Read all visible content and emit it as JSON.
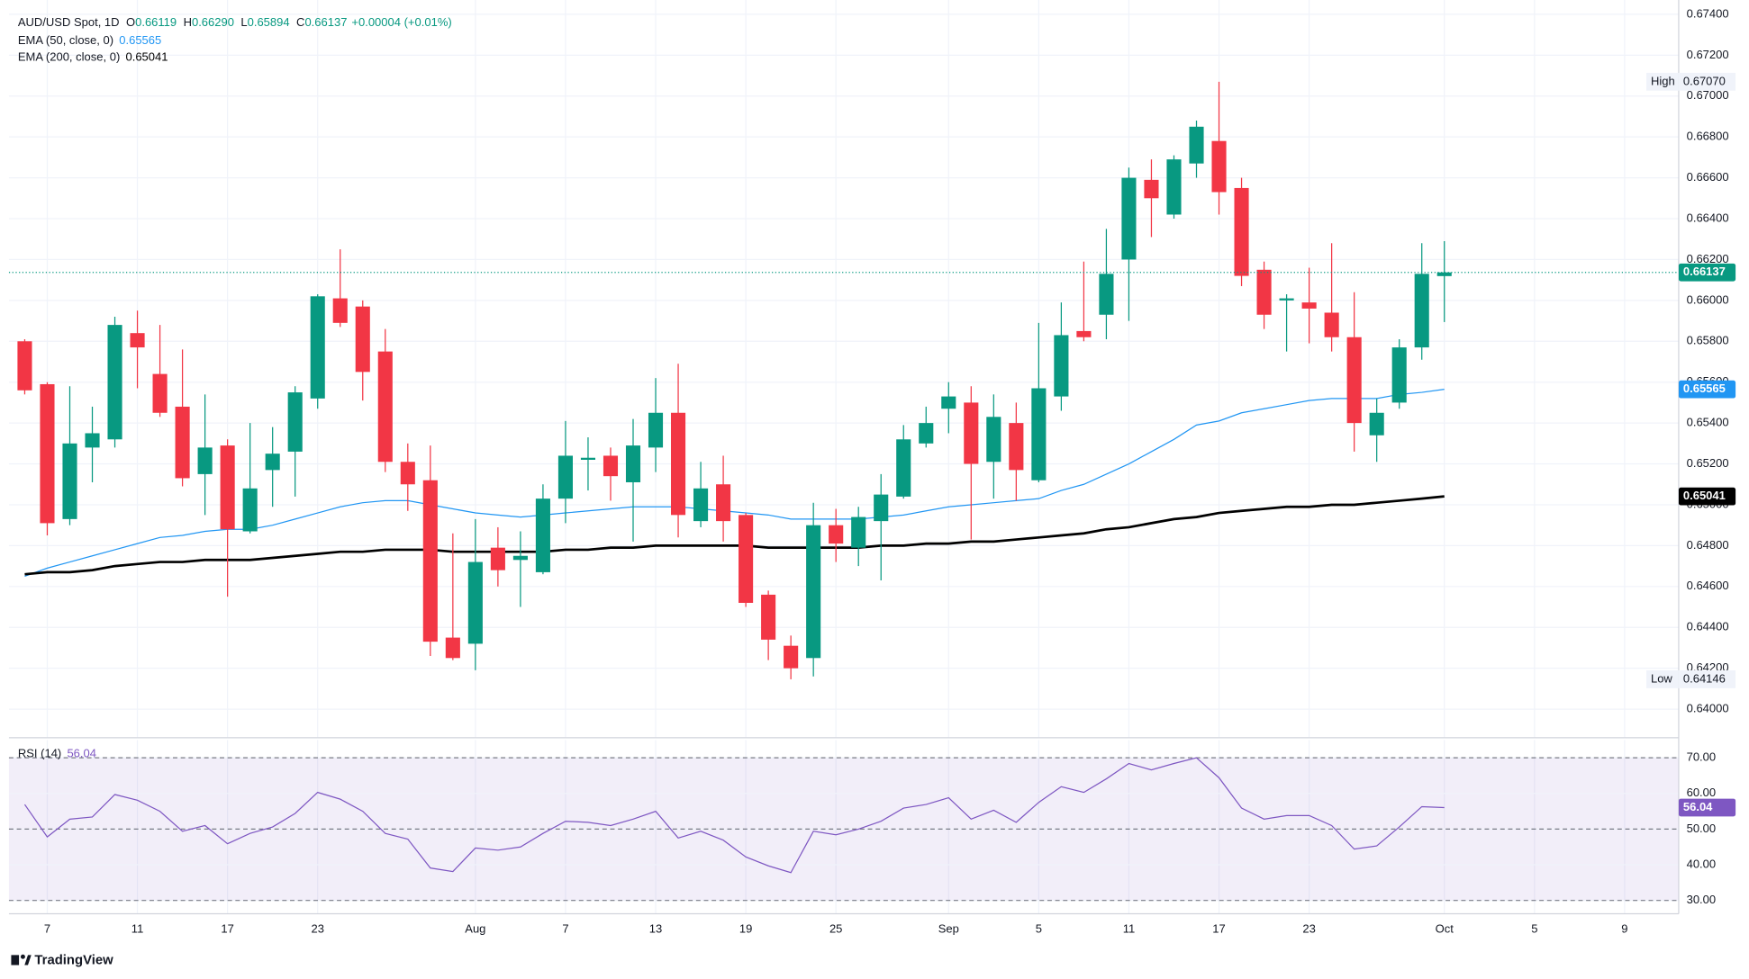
{
  "chart_data": {
    "type": "candlestick",
    "header": {
      "title": "AUD/USD Spot, 1D",
      "items": [
        {
          "key": "O",
          "value": "0.66119"
        },
        {
          "key": "H",
          "value": "0.66290"
        },
        {
          "key": "L",
          "value": "0.65894"
        },
        {
          "key": "C",
          "value": "0.66137"
        }
      ],
      "change": "+0.00004 (+0.01%)"
    },
    "candles": {
      "up_color": "#089981",
      "down_color": "#f23645",
      "open": [
        0.658,
        0.6559,
        0.6493,
        0.6528,
        0.6532,
        0.6584,
        0.6564,
        0.6548,
        0.6515,
        0.6529,
        0.6487,
        0.6517,
        0.6526,
        0.6552,
        0.6601,
        0.6597,
        0.6575,
        0.6521,
        0.6512,
        0.6435,
        0.6432,
        0.6479,
        0.6473,
        0.6467,
        0.6503,
        0.6522,
        0.6524,
        0.6511,
        0.6528,
        0.6545,
        0.6492,
        0.651,
        0.6495,
        0.6456,
        0.6431,
        0.6425,
        0.649,
        0.6479,
        0.6492,
        0.6504,
        0.653,
        0.6547,
        0.655,
        0.6521,
        0.654,
        0.6512,
        0.6553,
        0.6585,
        0.6593,
        0.662,
        0.6659,
        0.6642,
        0.6667,
        0.6678,
        0.6655,
        0.6615,
        0.66,
        0.6599,
        0.6594,
        0.6582,
        0.6534,
        0.655,
        0.6577,
        0.66119
      ],
      "high": [
        0.6581,
        0.656,
        0.6558,
        0.6548,
        0.6592,
        0.6595,
        0.6588,
        0.6576,
        0.6554,
        0.6532,
        0.654,
        0.6538,
        0.6558,
        0.6603,
        0.6625,
        0.66,
        0.6586,
        0.653,
        0.6529,
        0.6486,
        0.6493,
        0.6489,
        0.6487,
        0.651,
        0.6541,
        0.6533,
        0.6528,
        0.6542,
        0.6562,
        0.6569,
        0.6521,
        0.6524,
        0.6496,
        0.6458,
        0.6436,
        0.6501,
        0.6498,
        0.6499,
        0.6515,
        0.6539,
        0.6548,
        0.656,
        0.6558,
        0.6554,
        0.655,
        0.6589,
        0.6599,
        0.6619,
        0.6635,
        0.6665,
        0.6669,
        0.6671,
        0.6688,
        0.6707,
        0.666,
        0.6619,
        0.6603,
        0.6616,
        0.6628,
        0.6604,
        0.6552,
        0.6581,
        0.6628,
        0.6629
      ],
      "low": [
        0.6554,
        0.6485,
        0.649,
        0.6511,
        0.6528,
        0.6557,
        0.6543,
        0.6509,
        0.6495,
        0.6455,
        0.6486,
        0.6499,
        0.6504,
        0.6547,
        0.6587,
        0.6551,
        0.6516,
        0.6497,
        0.6426,
        0.6424,
        0.6419,
        0.646,
        0.645,
        0.6466,
        0.6491,
        0.6507,
        0.6502,
        0.6482,
        0.6516,
        0.6484,
        0.6489,
        0.6482,
        0.645,
        0.6424,
        0.64146,
        0.6416,
        0.6472,
        0.647,
        0.6463,
        0.6503,
        0.6528,
        0.6535,
        0.6483,
        0.6503,
        0.6502,
        0.6511,
        0.6546,
        0.658,
        0.6581,
        0.659,
        0.6631,
        0.664,
        0.666,
        0.6642,
        0.6607,
        0.6586,
        0.6575,
        0.6579,
        0.6575,
        0.6526,
        0.6521,
        0.6547,
        0.6571,
        0.65894
      ],
      "close": [
        0.6556,
        0.6491,
        0.653,
        0.6535,
        0.6588,
        0.6577,
        0.6545,
        0.6513,
        0.6528,
        0.6488,
        0.6508,
        0.6525,
        0.6555,
        0.6602,
        0.6589,
        0.6565,
        0.6521,
        0.651,
        0.6433,
        0.6425,
        0.6472,
        0.6468,
        0.6475,
        0.6503,
        0.6524,
        0.6523,
        0.6514,
        0.6529,
        0.6545,
        0.6495,
        0.6508,
        0.6492,
        0.6452,
        0.6434,
        0.642,
        0.649,
        0.6481,
        0.6494,
        0.6505,
        0.6532,
        0.654,
        0.6553,
        0.652,
        0.6543,
        0.6517,
        0.6557,
        0.6583,
        0.6582,
        0.6613,
        0.666,
        0.665,
        0.6669,
        0.6685,
        0.6653,
        0.6612,
        0.6593,
        0.6601,
        0.6596,
        0.6582,
        0.654,
        0.6545,
        0.6577,
        0.6613,
        0.66137
      ]
    },
    "series": [
      {
        "name": "EMA (50, close, 0)",
        "color": "#2196f3",
        "values": [
          0.6465,
          0.6469,
          0.6472,
          0.6475,
          0.6478,
          0.6481,
          0.6484,
          0.6485,
          0.6487,
          0.6488,
          0.6488,
          0.649,
          0.6493,
          0.6496,
          0.6499,
          0.6501,
          0.6502,
          0.6502,
          0.65,
          0.6498,
          0.6496,
          0.6495,
          0.6494,
          0.6495,
          0.6496,
          0.6497,
          0.6498,
          0.6499,
          0.6499,
          0.6499,
          0.6498,
          0.6497,
          0.6496,
          0.6495,
          0.6493,
          0.6493,
          0.6493,
          0.6493,
          0.6494,
          0.6495,
          0.6497,
          0.6499,
          0.65,
          0.6501,
          0.6502,
          0.6503,
          0.6507,
          0.651,
          0.6515,
          0.652,
          0.6526,
          0.6532,
          0.6539,
          0.6541,
          0.6545,
          0.6547,
          0.6549,
          0.6551,
          0.6552,
          0.6552,
          0.6552,
          0.6554,
          0.6555,
          0.65565
        ]
      },
      {
        "name": "EMA (200, close, 0)",
        "color": "#000000",
        "values": [
          0.6466,
          0.6467,
          0.6467,
          0.6468,
          0.647,
          0.6471,
          0.6472,
          0.6472,
          0.6473,
          0.6473,
          0.6473,
          0.6474,
          0.6475,
          0.6476,
          0.6477,
          0.6477,
          0.6478,
          0.6478,
          0.6478,
          0.6477,
          0.6477,
          0.6477,
          0.6477,
          0.6477,
          0.6478,
          0.6478,
          0.6479,
          0.6479,
          0.648,
          0.648,
          0.648,
          0.648,
          0.648,
          0.6479,
          0.6479,
          0.6479,
          0.6479,
          0.6479,
          0.648,
          0.648,
          0.6481,
          0.6481,
          0.6482,
          0.6482,
          0.6483,
          0.6484,
          0.6485,
          0.6486,
          0.6488,
          0.6489,
          0.6491,
          0.6493,
          0.6494,
          0.6496,
          0.6497,
          0.6498,
          0.6499,
          0.6499,
          0.65,
          0.65,
          0.6501,
          0.6502,
          0.6503,
          0.65041
        ]
      }
    ],
    "high": {
      "name": "High",
      "value": 0.6707,
      "label": "0.67070"
    },
    "low": {
      "name": "Low",
      "value": 0.64146
    },
    "xlim": [
      -0.7,
      73.4
    ],
    "xticks": [
      {
        "value": 1,
        "label": "7"
      },
      {
        "value": 5,
        "label": "11"
      },
      {
        "value": 9,
        "label": "17"
      },
      {
        "value": 13,
        "label": "23"
      },
      {
        "value": 20,
        "label": "Aug"
      },
      {
        "value": 24,
        "label": "7"
      },
      {
        "value": 28,
        "label": "13"
      },
      {
        "value": 32,
        "label": "19"
      },
      {
        "value": 36,
        "label": "25"
      },
      {
        "value": 41,
        "label": "Sep"
      },
      {
        "value": 45,
        "label": "5"
      },
      {
        "value": 49,
        "label": "11"
      },
      {
        "value": 53,
        "label": "17"
      },
      {
        "value": 57,
        "label": "23"
      },
      {
        "value": 63,
        "label": "Oct"
      },
      {
        "value": 67,
        "label": "5"
      },
      {
        "value": 71,
        "label": "9"
      }
    ],
    "ylim": [
      0.6386,
      0.6747
    ],
    "yticks": [
      {
        "value": 0.64,
        "label": "0.64000"
      },
      {
        "value": 0.642,
        "label": "0.64200"
      },
      {
        "value": 0.644,
        "label": "0.64400"
      },
      {
        "value": 0.646,
        "label": "0.64600"
      },
      {
        "value": 0.648,
        "label": "0.64800"
      },
      {
        "value": 0.65,
        "label": "0.65000"
      },
      {
        "value": 0.652,
        "label": "0.65200"
      },
      {
        "value": 0.654,
        "label": "0.65400"
      },
      {
        "value": 0.656,
        "label": "0.65600"
      },
      {
        "value": 0.658,
        "label": "0.65800"
      },
      {
        "value": 0.66,
        "label": "0.66000"
      },
      {
        "value": 0.662,
        "label": "0.66200"
      },
      {
        "value": 0.664,
        "label": "0.66400"
      },
      {
        "value": 0.666,
        "label": "0.66600"
      },
      {
        "value": 0.668,
        "label": "0.66800"
      },
      {
        "value": 0.67,
        "label": "0.67000"
      },
      {
        "value": 0.672,
        "label": "0.67200"
      },
      {
        "value": 0.674,
        "label": "0.67400"
      }
    ],
    "grid": true,
    "rsi": {
      "name": "RSI (14)",
      "color": "#7e57c2",
      "values": [
        56.9,
        47.8,
        52.8,
        53.4,
        59.7,
        58.1,
        55.0,
        49.4,
        51.0,
        45.9,
        48.8,
        50.6,
        54.4,
        60.3,
        58.4,
        55.0,
        48.8,
        47.2,
        39.1,
        38.1,
        44.7,
        44.1,
        45.0,
        48.8,
        52.2,
        51.9,
        51.0,
        52.8,
        55.0,
        47.5,
        49.4,
        46.9,
        42.2,
        39.7,
        37.8,
        49.4,
        48.4,
        50.0,
        52.2,
        55.9,
        56.9,
        58.8,
        52.8,
        55.3,
        51.9,
        57.5,
        61.9,
        60.3,
        64.1,
        68.4,
        66.6,
        68.4,
        70.0,
        64.4,
        55.9,
        52.8,
        53.8,
        53.8,
        51.0,
        44.4,
        45.3,
        50.6,
        56.3,
        56.04
      ],
      "ylim": [
        26.25,
        75
      ],
      "yticks": [
        {
          "value": 30,
          "label": "30.00"
        },
        {
          "value": 40,
          "label": "40.00"
        },
        {
          "value": 50,
          "label": "50.00"
        },
        {
          "value": 60,
          "label": "60.00"
        },
        {
          "value": 70,
          "label": "70.00"
        }
      ],
      "levels": [
        30,
        50,
        70
      ]
    },
    "brand": "TradingView"
  }
}
